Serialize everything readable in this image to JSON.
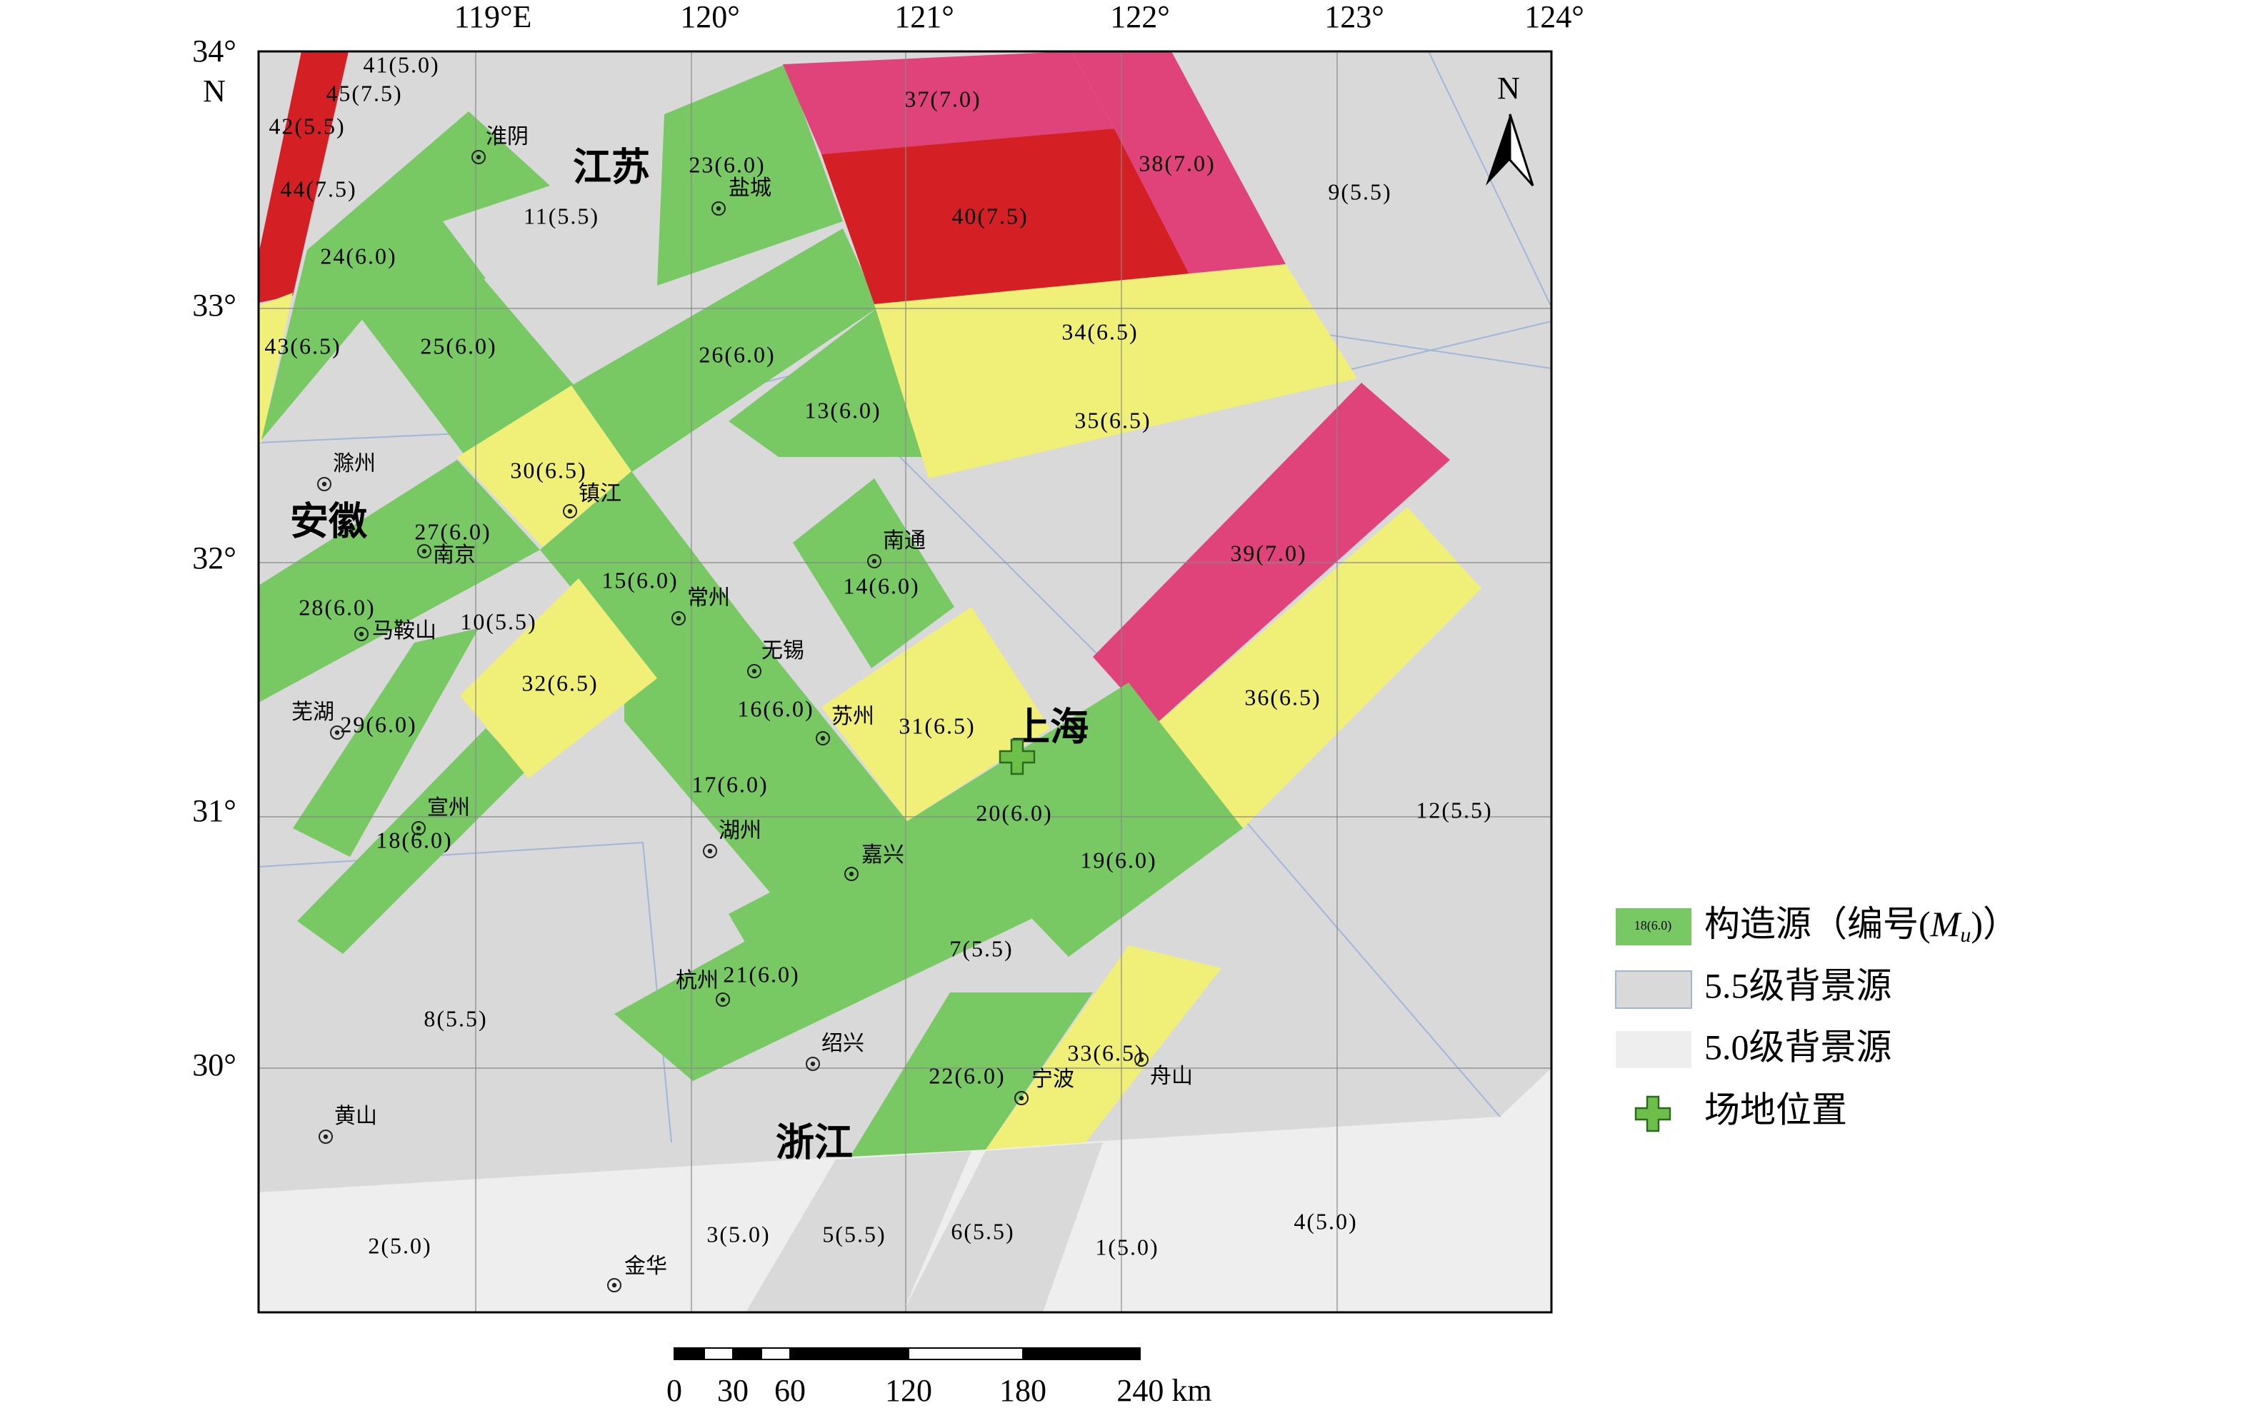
{
  "grid_labels": {
    "top": [
      "119°E",
      "120°",
      "121°",
      "122°",
      "123°",
      "124°"
    ],
    "left": [
      "34°",
      "N",
      "33°",
      "32°",
      "31°",
      "30°"
    ]
  },
  "zones": [
    "41(5.0)",
    "45(7.5)",
    "42(5.5)",
    "44(7.5)",
    "24(6.0)",
    "43(6.5)",
    "25(6.0)",
    "23(6.0)",
    "26(6.0)",
    "13(6.0)",
    "37(7.0)",
    "38(7.0)",
    "40(7.5)",
    "34(6.5)",
    "35(6.5)",
    "30(6.5)",
    "27(6.0)",
    "39(7.0)",
    "15(6.0)",
    "14(6.0)",
    "28(6.0)",
    "32(6.5)",
    "36(6.5)",
    "16(6.0)",
    "31(6.5)",
    "29(6.0)",
    "17(6.0)",
    "20(6.0)",
    "18(6.0)",
    "19(6.0)",
    "21(6.0)",
    "22(6.0)",
    "33(6.5)",
    "11(5.5)",
    "9(5.5)",
    "10(5.5)",
    "12(5.5)",
    "7(5.5)",
    "8(5.5)",
    "2(5.0)",
    "3(5.0)",
    "5(5.5)",
    "6(5.5)",
    "1(5.0)",
    "4(5.0)"
  ],
  "cities": [
    "淮阴",
    "盐城",
    "滁州",
    "镇江",
    "南京",
    "南通",
    "常州",
    "马鞍山",
    "无锡",
    "芜湖",
    "苏州",
    "宣州",
    "湖州",
    "嘉兴",
    "杭州",
    "绍兴",
    "宁波",
    "舟山",
    "黄山",
    "金华"
  ],
  "provinces": [
    "江苏",
    "安徽",
    "上海",
    "浙江"
  ],
  "north": "N",
  "legend": {
    "sample": "18(6.0)",
    "items": [
      {
        "text": "构造源（编号(",
        "symbol": "M",
        "subscript": "u",
        "close": ")）"
      },
      {
        "text": "5.5级背景源"
      },
      {
        "text": "5.0级背景源"
      },
      {
        "text": "场地位置"
      }
    ]
  },
  "scale_bar": [
    "0",
    "30",
    "60",
    "120",
    "180",
    "240 km"
  ]
}
